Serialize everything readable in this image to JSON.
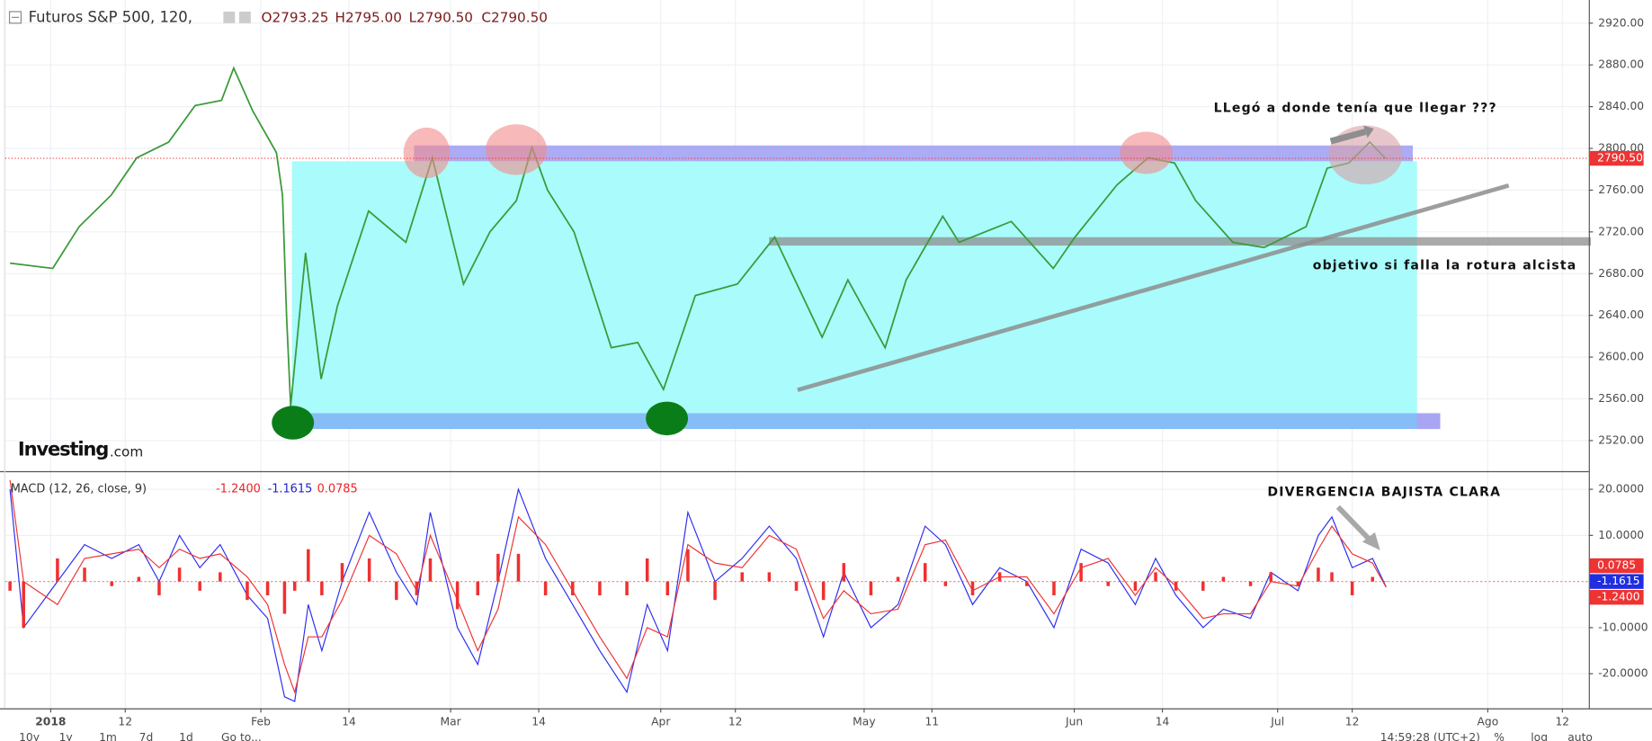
{
  "header": {
    "symbol": "Futuros S&P 500, 120,",
    "open": "O2793.25",
    "high": "H2795.00",
    "low": "L2790.50",
    "close": "C2790.50"
  },
  "logo": {
    "brand": "Investing",
    "suffix": ".com"
  },
  "annotations": [
    "LLegó a donde tenía que llegar ???",
    "objetivo si falla la rotura alcista",
    "DIVERGENCIA BAJISTA CLARA"
  ],
  "toolbar": {
    "ranges": [
      "10y",
      "1y",
      "1m",
      "7d",
      "1d",
      "Go to..."
    ],
    "clock": "14:59:28 (UTC+2)",
    "options": [
      "%",
      "log",
      "auto"
    ]
  },
  "chart_data": [
    {
      "type": "line",
      "grid": true,
      "x": [
        -5,
        1.3,
        5.2,
        9.9,
        13.7,
        18.4,
        22.3,
        26.2,
        28,
        30.8,
        34.3,
        35.2,
        35.8,
        36.4,
        38.6,
        40.9,
        43.3,
        47.9,
        53.4,
        57.3,
        61.9,
        65.8,
        69.7,
        72,
        74.3,
        78.2,
        83.7,
        87.6,
        91.4,
        96.1,
        102.3,
        107.8,
        114.8,
        118.6,
        124.1,
        127.2,
        132.6,
        135,
        142.7,
        148.9,
        152.1,
        158.3,
        162.9,
        166.8,
        169.9,
        175.4,
        180,
        186.2,
        189.3,
        192.5,
        195.6,
        197.9
      ],
      "series": [
        {
          "name": "Futuros S&P 500",
          "color": "#3a9a3a",
          "values": [
            2690,
            2685,
            2725,
            2755,
            2791,
            2806,
            2841,
            2846,
            2877,
            2836,
            2796,
            2755,
            2639,
            2553,
            2700,
            2579,
            2649,
            2740,
            2710,
            2791,
            2670,
            2720,
            2750,
            2801,
            2760,
            2720,
            2609,
            2614,
            2569,
            2659,
            2670,
            2715,
            2619,
            2674,
            2609,
            2674,
            2735,
            2710,
            2730,
            2685,
            2715,
            2765,
            2791,
            2786,
            2750,
            2710,
            2705,
            2725,
            2781,
            2786,
            2806,
            2790.5
          ]
        }
      ],
      "last_price": {
        "value": 2790.5,
        "label": "2790.50"
      },
      "xlim": [
        -5.7,
        227.9
      ],
      "xticks": [
        {
          "value": 1,
          "label": "2018"
        },
        {
          "value": 12,
          "label": "12"
        },
        {
          "value": 32,
          "label": "Feb"
        },
        {
          "value": 45,
          "label": "14"
        },
        {
          "value": 60,
          "label": "Mar"
        },
        {
          "value": 73,
          "label": "14"
        },
        {
          "value": 91,
          "label": "Apr"
        },
        {
          "value": 102,
          "label": "12"
        },
        {
          "value": 121,
          "label": "May"
        },
        {
          "value": 131,
          "label": "11"
        },
        {
          "value": 152,
          "label": "Jun"
        },
        {
          "value": 165,
          "label": "14"
        },
        {
          "value": 182,
          "label": "Jul"
        },
        {
          "value": 193,
          "label": "12"
        },
        {
          "value": 213,
          "label": "Ago"
        },
        {
          "value": 224,
          "label": "12"
        }
      ],
      "ylim": [
        2490.7,
        2942.2
      ],
      "yticks": [
        {
          "value": 2520,
          "label": "2520.00"
        },
        {
          "value": 2560,
          "label": "2560.00"
        },
        {
          "value": 2600,
          "label": "2600.00"
        },
        {
          "value": 2640,
          "label": "2640.00"
        },
        {
          "value": 2680,
          "label": "2680.00"
        },
        {
          "value": 2720,
          "label": "2720.00"
        },
        {
          "value": 2760,
          "label": "2760.00"
        },
        {
          "value": 2800,
          "label": "2800.00"
        },
        {
          "value": 2840,
          "label": "2840.00"
        },
        {
          "value": 2880,
          "label": "2880.00"
        },
        {
          "value": 2920,
          "label": "2920.00"
        }
      ]
    },
    {
      "type": "line",
      "grid": true,
      "title": "MACD (12, 26, close, 9)",
      "x": [
        -5,
        -3,
        2,
        6,
        10,
        14,
        17,
        20,
        23,
        26,
        30,
        33,
        35.5,
        37,
        39,
        41,
        44,
        48,
        52,
        55,
        57,
        61,
        64,
        67,
        70,
        74,
        78,
        82,
        86,
        89,
        92,
        95,
        99,
        103,
        107,
        111,
        115,
        118,
        122,
        126,
        130,
        133,
        137,
        141,
        145,
        149,
        153,
        157,
        161,
        164,
        167,
        171,
        174,
        178,
        181,
        185,
        188,
        190,
        193,
        196,
        198
      ],
      "series": [
        {
          "name": "MACD",
          "color": "#2c2cf0",
          "value_label": "-1.1615",
          "values": [
            20,
            -10,
            0,
            8,
            5,
            8,
            0,
            10,
            3,
            8,
            -3,
            -8,
            -25,
            -26,
            -5,
            -15,
            0,
            15,
            2,
            -5,
            15,
            -10,
            -18,
            0,
            20,
            5,
            -5,
            -15,
            -24,
            -5,
            -15,
            15,
            0,
            5,
            12,
            5,
            -12,
            2,
            -10,
            -5,
            12,
            8,
            -5,
            3,
            0,
            -10,
            7,
            4,
            -5,
            5,
            -3,
            -10,
            -6,
            -8,
            2,
            -2,
            10,
            14,
            3,
            5,
            -1.1615
          ]
        },
        {
          "name": "Signal",
          "color": "#ee3333",
          "value_label": "-1.2400",
          "values": [
            22,
            0,
            -5,
            5,
            6,
            7,
            3,
            7,
            5,
            6,
            1,
            -5,
            -18,
            -24,
            -12,
            -12,
            -4,
            10,
            6,
            -2,
            10,
            -4,
            -15,
            -6,
            14,
            8,
            -2,
            -12,
            -21,
            -10,
            -12,
            8,
            4,
            3,
            10,
            7,
            -8,
            -2,
            -7,
            -6,
            8,
            9,
            -2,
            1,
            1,
            -7,
            3,
            5,
            -3,
            3,
            -1,
            -8,
            -7,
            -7,
            0,
            -1,
            7,
            12,
            6,
            4,
            -1.24
          ]
        },
        {
          "name": "Histogram",
          "type": "bar",
          "color": "#f03030",
          "value_label": "0.0785",
          "values": [
            -2,
            -10,
            5,
            3,
            -1,
            1,
            -3,
            3,
            -2,
            2,
            -4,
            -3,
            -7,
            -2,
            7,
            -3,
            4,
            5,
            -4,
            -3,
            5,
            -6,
            -3,
            6,
            6,
            -3,
            -3,
            -3,
            -3,
            5,
            -3,
            7,
            -4,
            2,
            2,
            -2,
            -4,
            4,
            -3,
            1,
            4,
            -1,
            -3,
            2,
            -1,
            -3,
            4,
            -1,
            -2,
            2,
            -2,
            -2,
            1,
            -1,
            2,
            -1,
            3,
            2,
            -3,
            1,
            0.0785
          ]
        }
      ],
      "xlim": [
        -5.7,
        227.9
      ],
      "ylim": [
        -27.5,
        23.7
      ],
      "yticks": [
        {
          "value": 20,
          "label": "20.0000"
        },
        {
          "value": 10,
          "label": "10.0000"
        },
        {
          "value": -10,
          "label": "-10.0000"
        },
        {
          "value": -20,
          "label": "-20.0000"
        }
      ]
    }
  ]
}
